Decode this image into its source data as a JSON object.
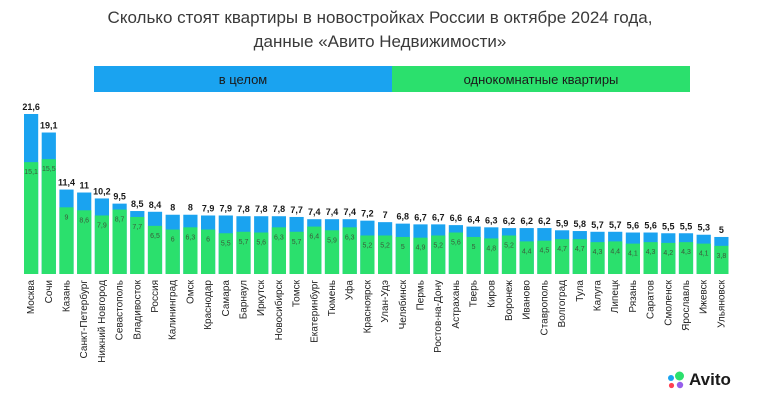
{
  "title_line1": "Сколько стоят квартиры в новостройках России в октябре 2024 года,",
  "title_line2": "данные «Авито Недвижимости»",
  "brand": "Avito",
  "colors": {
    "total": "#1aa3f0",
    "one_room": "#2be06d",
    "bg": "#ffffff"
  },
  "chart_data": {
    "type": "bar",
    "legend_position": "top",
    "grid": false,
    "ylim": [
      0,
      22
    ],
    "series": [
      {
        "name": "в целом",
        "values": [
          21.6,
          19.1,
          11.4,
          11,
          10.2,
          9.5,
          8.5,
          8.4,
          8,
          8,
          7.9,
          7.9,
          7.8,
          7.8,
          7.8,
          7.7,
          7.4,
          7.4,
          7.4,
          7.2,
          7,
          6.8,
          6.7,
          6.7,
          6.6,
          6.4,
          6.3,
          6.2,
          6.2,
          6.2,
          5.9,
          5.8,
          5.7,
          5.7,
          5.6,
          5.6,
          5.5,
          5.5,
          5.3,
          5
        ]
      },
      {
        "name": "однокомнатные квартиры",
        "values": [
          15.1,
          15.5,
          9,
          8.6,
          7.9,
          8.7,
          7.7,
          6.5,
          6,
          6.3,
          6,
          5.5,
          5.7,
          5.6,
          6.3,
          5.7,
          6.4,
          5.9,
          6.3,
          5.2,
          5.2,
          5,
          4.9,
          5.2,
          5.6,
          5,
          4.8,
          5.2,
          4.4,
          4.5,
          4.7,
          4.7,
          4.3,
          4.4,
          4.1,
          4.3,
          4.2,
          4.3,
          4.1,
          3.8
        ]
      }
    ],
    "categories": [
      "Москва",
      "Сочи",
      "Казань",
      "Санкт-Петербург",
      "Нижний Новгород",
      "Севастополь",
      "Владивосток",
      "Россия",
      "Калининград",
      "Омск",
      "Краснодар",
      "Самара",
      "Барнаул",
      "Иркутск",
      "Новосибирск",
      "Томск",
      "Екатеринбург",
      "Тюмень",
      "Уфа",
      "Красноярск",
      "Улан-Удэ",
      "Челябинск",
      "Пермь",
      "Ростов-на-Дону",
      "Астрахань",
      "Тверь",
      "Киров",
      "Воронеж",
      "Иваново",
      "Ставрополь",
      "Волгоград",
      "Тула",
      "Калуга",
      "Липецк",
      "Рязань",
      "Саратов",
      "Смоленск",
      "Ярославль",
      "Ижевск",
      "Ульяновск"
    ]
  }
}
